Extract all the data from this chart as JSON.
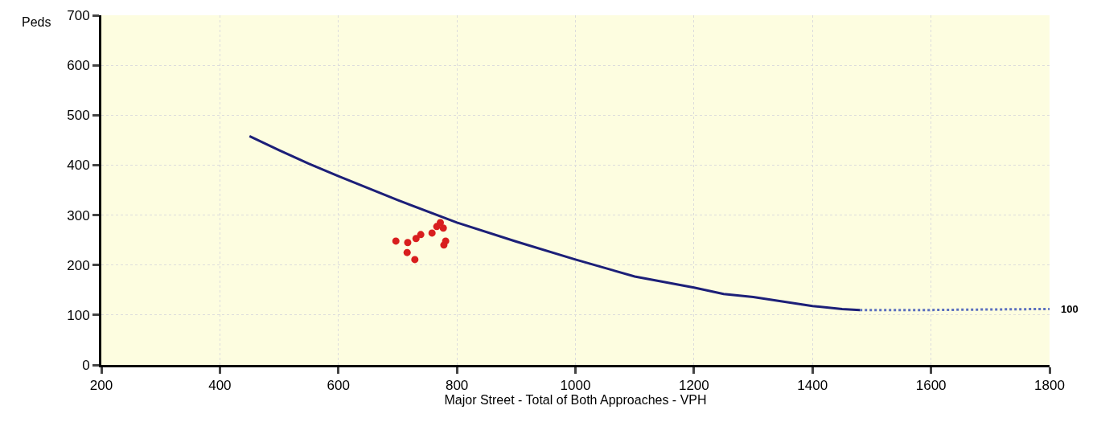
{
  "chart_data": {
    "type": "scatter",
    "xlabel": "Major Street - Total of Both Approaches - VPH",
    "ylabel": "Peds",
    "xlim": [
      200,
      1800
    ],
    "xticks": [
      200,
      400,
      600,
      800,
      1000,
      1200,
      1400,
      1600,
      1800
    ],
    "ylim": [
      0,
      700
    ],
    "yticks": [
      0,
      100,
      200,
      300,
      400,
      500,
      600,
      700
    ],
    "grid": true,
    "legend": false,
    "series": [
      {
        "type": "line",
        "color": "#1c1f78",
        "line_style": "solid",
        "x": [
          450,
          500,
          550,
          600,
          700,
          800,
          900,
          1000,
          1100,
          1200,
          1250,
          1300,
          1400,
          1450,
          1480
        ],
        "values": [
          458,
          430,
          403,
          378,
          330,
          285,
          247,
          211,
          177,
          155,
          142,
          136,
          118,
          112,
          110
        ]
      },
      {
        "type": "line",
        "color": "#5a6fbf",
        "line_style": "dotted",
        "x": [
          1480,
          1600,
          1800
        ],
        "values": [
          110,
          110,
          112
        ]
      },
      {
        "color": "#d81e1e",
        "marker": "circle",
        "x": [
          697,
          717,
          716,
          729,
          731,
          739,
          758,
          766,
          772,
          777,
          778,
          781
        ],
        "values": [
          248,
          245,
          225,
          211,
          253,
          261,
          264,
          277,
          285,
          274,
          240,
          248
        ]
      }
    ],
    "annotations": [
      {
        "text": "100",
        "x": 1800,
        "y": 112
      }
    ]
  }
}
